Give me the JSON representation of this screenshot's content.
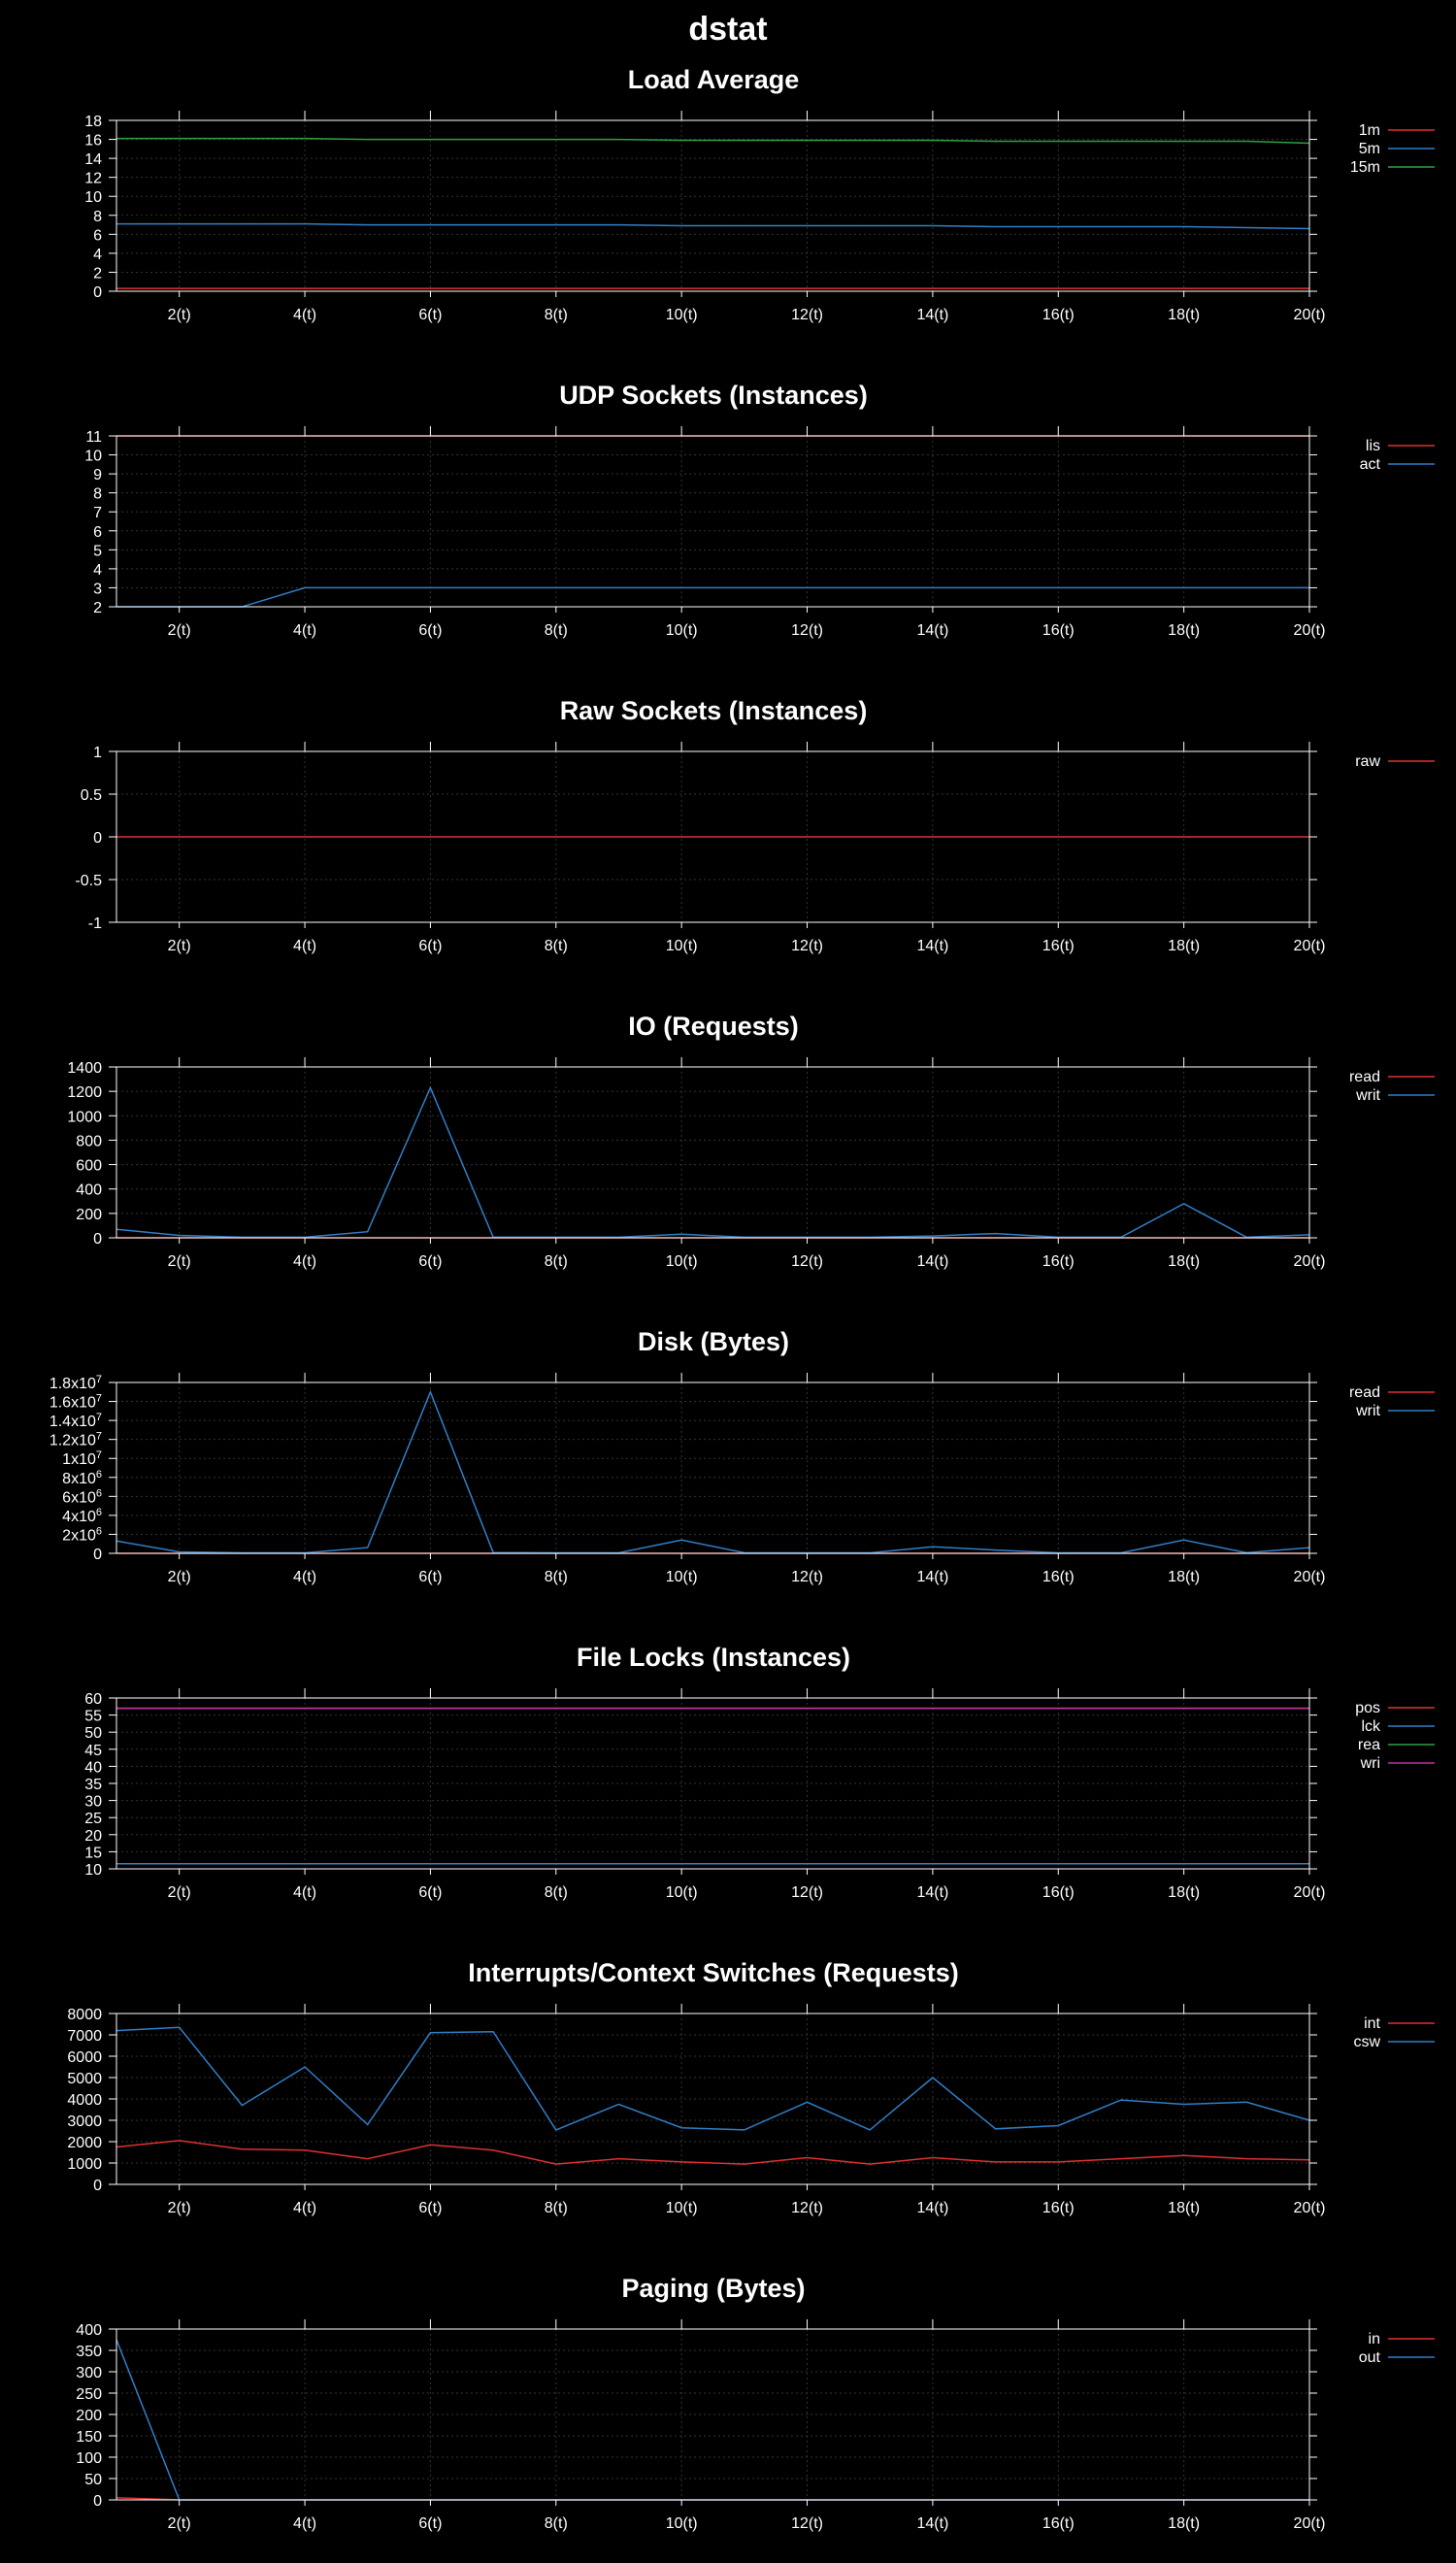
{
  "page_title": "dstat",
  "colors": {
    "background": "#000000",
    "foreground": "#ffffff",
    "grid": "#333333",
    "series": [
      "#e03030",
      "#2f7fc8",
      "#2fa040",
      "#c0309a"
    ]
  },
  "chart_data": [
    {
      "type": "line",
      "title": "Load Average",
      "xlabel": "",
      "ylabel": "",
      "x": [
        1,
        2,
        3,
        4,
        5,
        6,
        7,
        8,
        9,
        10,
        11,
        12,
        13,
        14,
        15,
        16,
        17,
        18,
        19,
        20
      ],
      "xlim": [
        1,
        20
      ],
      "xticks": [
        2,
        4,
        6,
        8,
        10,
        12,
        14,
        16,
        18,
        20
      ],
      "xtick_labels": [
        "2(t)",
        "4(t)",
        "6(t)",
        "8(t)",
        "10(t)",
        "12(t)",
        "14(t)",
        "16(t)",
        "18(t)",
        "20(t)"
      ],
      "ylim": [
        0,
        18
      ],
      "yticks": [
        0,
        2,
        4,
        6,
        8,
        10,
        12,
        14,
        16,
        18
      ],
      "ytick_labels": [
        "0",
        "2",
        "4",
        "6",
        "8",
        "10",
        "12",
        "14",
        "16",
        "18"
      ],
      "grid": true,
      "legend_position": "right",
      "series": [
        {
          "name": "1m",
          "color": "#e03030",
          "values": [
            0.3,
            0.3,
            0.3,
            0.3,
            0.3,
            0.3,
            0.3,
            0.3,
            0.3,
            0.3,
            0.3,
            0.3,
            0.3,
            0.3,
            0.3,
            0.3,
            0.3,
            0.3,
            0.3,
            0.3
          ]
        },
        {
          "name": "5m",
          "color": "#2f7fc8",
          "values": [
            7.1,
            7.1,
            7.1,
            7.1,
            7.0,
            7.0,
            7.0,
            7.0,
            7.0,
            6.9,
            6.9,
            6.9,
            6.9,
            6.9,
            6.8,
            6.8,
            6.8,
            6.8,
            6.7,
            6.6
          ]
        },
        {
          "name": "15m",
          "color": "#2fa040",
          "values": [
            16.1,
            16.1,
            16.1,
            16.1,
            16.0,
            16.0,
            16.0,
            16.0,
            16.0,
            15.9,
            15.9,
            15.9,
            15.9,
            15.9,
            15.8,
            15.8,
            15.8,
            15.8,
            15.8,
            15.6
          ]
        }
      ]
    },
    {
      "type": "line",
      "title": "UDP Sockets (Instances)",
      "xlabel": "",
      "ylabel": "",
      "x": [
        1,
        2,
        3,
        4,
        5,
        6,
        7,
        8,
        9,
        10,
        11,
        12,
        13,
        14,
        15,
        16,
        17,
        18,
        19,
        20
      ],
      "xlim": [
        1,
        20
      ],
      "xticks": [
        2,
        4,
        6,
        8,
        10,
        12,
        14,
        16,
        18,
        20
      ],
      "xtick_labels": [
        "2(t)",
        "4(t)",
        "6(t)",
        "8(t)",
        "10(t)",
        "12(t)",
        "14(t)",
        "16(t)",
        "18(t)",
        "20(t)"
      ],
      "ylim": [
        2,
        11
      ],
      "yticks": [
        2,
        3,
        4,
        5,
        6,
        7,
        8,
        9,
        10,
        11
      ],
      "ytick_labels": [
        "2",
        "3",
        "4",
        "5",
        "6",
        "7",
        "8",
        "9",
        "10",
        "11"
      ],
      "grid": true,
      "legend_position": "right",
      "series": [
        {
          "name": "lis",
          "color": "#e03030",
          "values": [
            11,
            11,
            11,
            11,
            11,
            11,
            11,
            11,
            11,
            11,
            11,
            11,
            11,
            11,
            11,
            11,
            11,
            11,
            11,
            11
          ]
        },
        {
          "name": "act",
          "color": "#2f7fc8",
          "values": [
            2,
            2,
            2,
            3,
            3,
            3,
            3,
            3,
            3,
            3,
            3,
            3,
            3,
            3,
            3,
            3,
            3,
            3,
            3,
            3
          ]
        }
      ]
    },
    {
      "type": "line",
      "title": "Raw Sockets (Instances)",
      "xlabel": "",
      "ylabel": "",
      "x": [
        1,
        2,
        3,
        4,
        5,
        6,
        7,
        8,
        9,
        10,
        11,
        12,
        13,
        14,
        15,
        16,
        17,
        18,
        19,
        20
      ],
      "xlim": [
        1,
        20
      ],
      "xticks": [
        2,
        4,
        6,
        8,
        10,
        12,
        14,
        16,
        18,
        20
      ],
      "xtick_labels": [
        "2(t)",
        "4(t)",
        "6(t)",
        "8(t)",
        "10(t)",
        "12(t)",
        "14(t)",
        "16(t)",
        "18(t)",
        "20(t)"
      ],
      "ylim": [
        -1,
        1
      ],
      "yticks": [
        -1,
        -0.5,
        0,
        0.5,
        1
      ],
      "ytick_labels": [
        "-1",
        "-0.5",
        "0",
        "0.5",
        "1"
      ],
      "grid": true,
      "legend_position": "right",
      "series": [
        {
          "name": "raw",
          "color": "#e03030",
          "values": [
            0,
            0,
            0,
            0,
            0,
            0,
            0,
            0,
            0,
            0,
            0,
            0,
            0,
            0,
            0,
            0,
            0,
            0,
            0,
            0
          ]
        }
      ]
    },
    {
      "type": "line",
      "title": "IO (Requests)",
      "xlabel": "",
      "ylabel": "",
      "x": [
        1,
        2,
        3,
        4,
        5,
        6,
        7,
        8,
        9,
        10,
        11,
        12,
        13,
        14,
        15,
        16,
        17,
        18,
        19,
        20
      ],
      "xlim": [
        1,
        20
      ],
      "xticks": [
        2,
        4,
        6,
        8,
        10,
        12,
        14,
        16,
        18,
        20
      ],
      "xtick_labels": [
        "2(t)",
        "4(t)",
        "6(t)",
        "8(t)",
        "10(t)",
        "12(t)",
        "14(t)",
        "16(t)",
        "18(t)",
        "20(t)"
      ],
      "ylim": [
        0,
        1400
      ],
      "yticks": [
        0,
        200,
        400,
        600,
        800,
        1000,
        1200,
        1400
      ],
      "ytick_labels": [
        "0",
        "200",
        "400",
        "600",
        "800",
        "1000",
        "1200",
        "1400"
      ],
      "grid": true,
      "legend_position": "right",
      "series": [
        {
          "name": "read",
          "color": "#e03030",
          "values": [
            0,
            0,
            0,
            0,
            0,
            0,
            0,
            0,
            0,
            0,
            0,
            0,
            0,
            0,
            0,
            0,
            0,
            0,
            0,
            0
          ]
        },
        {
          "name": "writ",
          "color": "#2f7fc8",
          "values": [
            70,
            20,
            5,
            5,
            50,
            1230,
            5,
            5,
            5,
            30,
            5,
            5,
            5,
            15,
            35,
            5,
            5,
            280,
            5,
            25
          ]
        }
      ]
    },
    {
      "type": "line",
      "title": "Disk (Bytes)",
      "xlabel": "",
      "ylabel": "",
      "x": [
        1,
        2,
        3,
        4,
        5,
        6,
        7,
        8,
        9,
        10,
        11,
        12,
        13,
        14,
        15,
        16,
        17,
        18,
        19,
        20
      ],
      "xlim": [
        1,
        20
      ],
      "xticks": [
        2,
        4,
        6,
        8,
        10,
        12,
        14,
        16,
        18,
        20
      ],
      "xtick_labels": [
        "2(t)",
        "4(t)",
        "6(t)",
        "8(t)",
        "10(t)",
        "12(t)",
        "14(t)",
        "16(t)",
        "18(t)",
        "20(t)"
      ],
      "ylim": [
        0,
        18000000
      ],
      "yticks": [
        0,
        2000000,
        4000000,
        6000000,
        8000000,
        10000000,
        12000000,
        14000000,
        16000000,
        18000000
      ],
      "ytick_labels": [
        "0",
        "2x10^6",
        "4x10^6",
        "6x10^6",
        "8x10^6",
        "1x10^7",
        "1.2x10^7",
        "1.4x10^7",
        "1.6x10^7",
        "1.8x10^7"
      ],
      "grid": true,
      "legend_position": "right",
      "series": [
        {
          "name": "read",
          "color": "#e03030",
          "values": [
            0,
            0,
            0,
            0,
            0,
            0,
            0,
            0,
            0,
            0,
            0,
            0,
            0,
            0,
            0,
            0,
            0,
            0,
            0,
            0
          ]
        },
        {
          "name": "writ",
          "color": "#2f7fc8",
          "values": [
            1300000,
            150000,
            50000,
            50000,
            600000,
            17000000,
            80000,
            50000,
            50000,
            1400000,
            60000,
            50000,
            50000,
            700000,
            350000,
            50000,
            50000,
            1400000,
            60000,
            600000
          ]
        }
      ]
    },
    {
      "type": "line",
      "title": "File Locks (Instances)",
      "xlabel": "",
      "ylabel": "",
      "x": [
        1,
        2,
        3,
        4,
        5,
        6,
        7,
        8,
        9,
        10,
        11,
        12,
        13,
        14,
        15,
        16,
        17,
        18,
        19,
        20
      ],
      "xlim": [
        1,
        20
      ],
      "xticks": [
        2,
        4,
        6,
        8,
        10,
        12,
        14,
        16,
        18,
        20
      ],
      "xtick_labels": [
        "2(t)",
        "4(t)",
        "6(t)",
        "8(t)",
        "10(t)",
        "12(t)",
        "14(t)",
        "16(t)",
        "18(t)",
        "20(t)"
      ],
      "ylim": [
        10,
        60
      ],
      "yticks": [
        10,
        15,
        20,
        25,
        30,
        35,
        40,
        45,
        50,
        55,
        60
      ],
      "ytick_labels": [
        "10",
        "15",
        "20",
        "25",
        "30",
        "35",
        "40",
        "45",
        "50",
        "55",
        "60"
      ],
      "grid": true,
      "legend_position": "right",
      "series": [
        {
          "name": "pos",
          "color": "#e03030",
          "values": [
            57,
            57,
            57,
            57,
            57,
            57,
            57,
            57,
            57,
            57,
            57,
            57,
            57,
            57,
            57,
            57,
            57,
            57,
            57,
            57
          ]
        },
        {
          "name": "lck",
          "color": "#2f7fc8",
          "values": [
            11.5,
            11.5,
            11.5,
            11.5,
            11.5,
            11.5,
            11.5,
            11.5,
            11.5,
            11.5,
            11.5,
            11.5,
            11.5,
            11.5,
            11.5,
            11.5,
            11.5,
            11.5,
            11.5,
            11.5
          ]
        },
        {
          "name": "rea",
          "color": "#2fa040",
          "values": [
            57,
            57,
            57,
            57,
            57,
            57,
            57,
            57,
            57,
            57,
            57,
            57,
            57,
            57,
            57,
            57,
            57,
            57,
            57,
            57
          ]
        },
        {
          "name": "wri",
          "color": "#c0309a",
          "values": [
            57,
            57,
            57,
            57,
            57,
            57,
            57,
            57,
            57,
            57,
            57,
            57,
            57,
            57,
            57,
            57,
            57,
            57,
            57,
            57
          ]
        }
      ]
    },
    {
      "type": "line",
      "title": "Interrupts/Context Switches (Requests)",
      "xlabel": "",
      "ylabel": "",
      "x": [
        1,
        2,
        3,
        4,
        5,
        6,
        7,
        8,
        9,
        10,
        11,
        12,
        13,
        14,
        15,
        16,
        17,
        18,
        19,
        20
      ],
      "xlim": [
        1,
        20
      ],
      "xticks": [
        2,
        4,
        6,
        8,
        10,
        12,
        14,
        16,
        18,
        20
      ],
      "xtick_labels": [
        "2(t)",
        "4(t)",
        "6(t)",
        "8(t)",
        "10(t)",
        "12(t)",
        "14(t)",
        "16(t)",
        "18(t)",
        "20(t)"
      ],
      "ylim": [
        0,
        8000
      ],
      "yticks": [
        0,
        1000,
        2000,
        3000,
        4000,
        5000,
        6000,
        7000,
        8000
      ],
      "ytick_labels": [
        "0",
        "1000",
        "2000",
        "3000",
        "4000",
        "5000",
        "6000",
        "7000",
        "8000"
      ],
      "grid": true,
      "legend_position": "right",
      "series": [
        {
          "name": "int",
          "color": "#e03030",
          "values": [
            1750,
            2050,
            1650,
            1600,
            1200,
            1850,
            1600,
            950,
            1200,
            1050,
            950,
            1250,
            950,
            1250,
            1050,
            1050,
            1200,
            1350,
            1200,
            1150
          ]
        },
        {
          "name": "csw",
          "color": "#2f7fc8",
          "values": [
            7200,
            7350,
            3700,
            5500,
            2800,
            7100,
            7150,
            2550,
            3750,
            2650,
            2550,
            3850,
            2550,
            5000,
            2600,
            2750,
            3950,
            3750,
            3850,
            3000
          ]
        }
      ]
    },
    {
      "type": "line",
      "title": "Paging (Bytes)",
      "xlabel": "",
      "ylabel": "",
      "x": [
        1,
        2,
        3,
        4,
        5,
        6,
        7,
        8,
        9,
        10,
        11,
        12,
        13,
        14,
        15,
        16,
        17,
        18,
        19,
        20
      ],
      "xlim": [
        1,
        20
      ],
      "xticks": [
        2,
        4,
        6,
        8,
        10,
        12,
        14,
        16,
        18,
        20
      ],
      "xtick_labels": [
        "2(t)",
        "4(t)",
        "6(t)",
        "8(t)",
        "10(t)",
        "12(t)",
        "14(t)",
        "16(t)",
        "18(t)",
        "20(t)"
      ],
      "ylim": [
        0,
        400
      ],
      "yticks": [
        0,
        50,
        100,
        150,
        200,
        250,
        300,
        350,
        400
      ],
      "ytick_labels": [
        "0",
        "50",
        "100",
        "150",
        "200",
        "250",
        "300",
        "350",
        "400"
      ],
      "grid": true,
      "legend_position": "right",
      "series": [
        {
          "name": "in",
          "color": "#e03030",
          "values": [
            5,
            0,
            0,
            0,
            0,
            0,
            0,
            0,
            0,
            0,
            0,
            0,
            0,
            0,
            0,
            0,
            0,
            0,
            0,
            0
          ]
        },
        {
          "name": "out",
          "color": "#2f7fc8",
          "values": [
            375,
            0,
            0,
            0,
            0,
            0,
            0,
            0,
            0,
            0,
            0,
            0,
            0,
            0,
            0,
            0,
            0,
            0,
            0,
            0
          ]
        }
      ]
    }
  ]
}
